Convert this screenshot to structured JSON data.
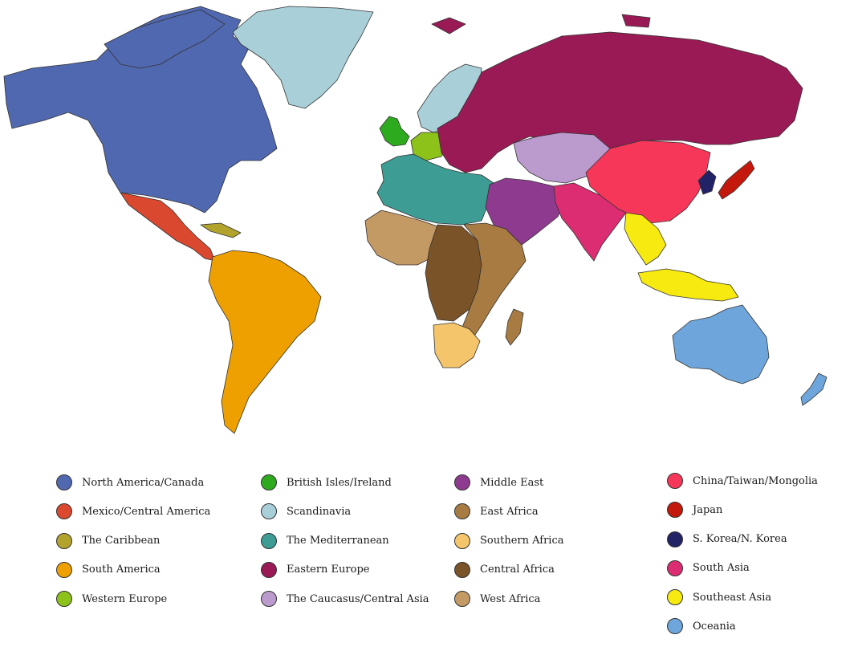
{
  "legend": {
    "columns": [
      [
        {
          "label": "North America/Canada",
          "color": "#5068b0"
        },
        {
          "label": "Mexico/Central America",
          "color": "#d9482f"
        },
        {
          "label": "The Caribbean",
          "color": "#b2a32c"
        },
        {
          "label": "South America",
          "color": "#eda000"
        },
        {
          "label": "Western Europe",
          "color": "#8cc21a"
        }
      ],
      [
        {
          "label": "British Isles/Ireland",
          "color": "#2eaa1e"
        },
        {
          "label": "Scandinavia",
          "color": "#a9cfd9"
        },
        {
          "label": "The Mediterranean",
          "color": "#3d9d94"
        },
        {
          "label": "Eastern Europe",
          "color": "#9a1a55"
        },
        {
          "label": "The Caucasus/Central Asia",
          "color": "#bb9ace"
        }
      ],
      [
        {
          "label": "Middle East",
          "color": "#8e3a8e"
        },
        {
          "label": "East Africa",
          "color": "#a87b42"
        },
        {
          "label": "Southern  Africa",
          "color": "#f4c56a"
        },
        {
          "label": "Central Africa",
          "color": "#7b5328"
        },
        {
          "label": "West Africa",
          "color": "#c49a64"
        }
      ],
      [
        {
          "label": "China/Taiwan/Mongolia",
          "color": "#f7375a"
        },
        {
          "label": "Japan",
          "color": "#c4180c"
        },
        {
          "label": "S. Korea/N. Korea",
          "color": "#222266"
        },
        {
          "label": "South Asia",
          "color": "#dc2d72"
        },
        {
          "label": "Southeast Asia",
          "color": "#f7ea10"
        },
        {
          "label": "Oceania",
          "color": "#6ea6dc"
        }
      ]
    ]
  }
}
